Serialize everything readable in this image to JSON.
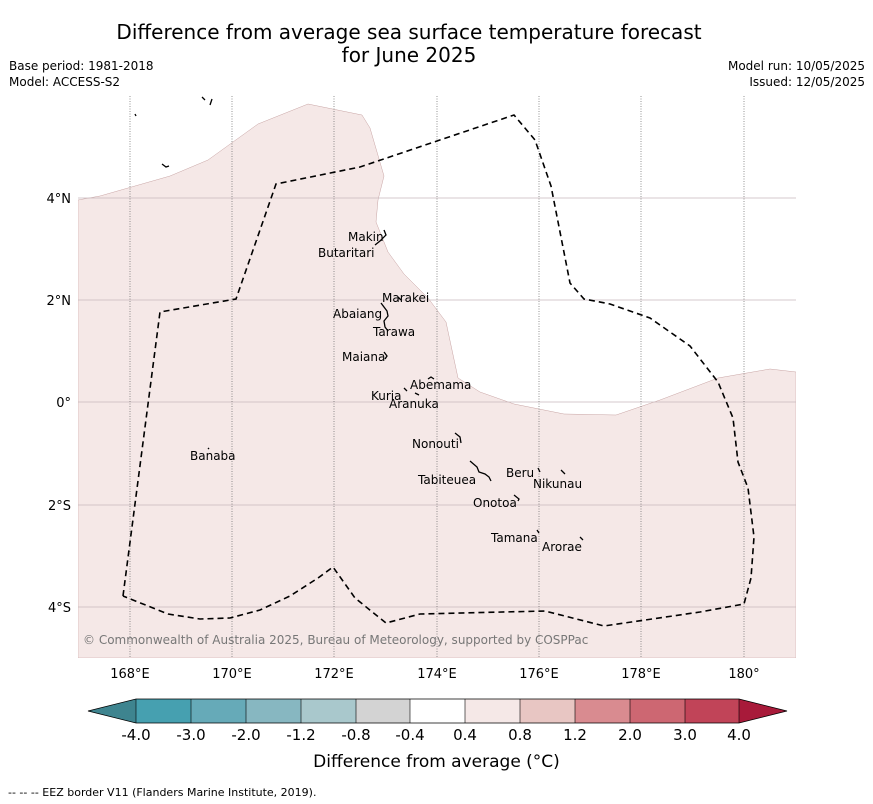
{
  "title": "Difference from average sea surface temperature forecast for June 2025",
  "header": {
    "base_period": "Base period: 1981-2018",
    "model": "Model: ACCESS-S2",
    "model_run": "Model run: 10/05/2025",
    "issued": "Issued: 12/05/2025"
  },
  "map": {
    "lon_ticks": [
      "168°E",
      "170°E",
      "172°E",
      "174°E",
      "176°E",
      "178°E",
      "180°"
    ],
    "lat_ticks": [
      "4°N",
      "2°N",
      "0°",
      "2°S",
      "4°S"
    ],
    "lon_values": [
      168,
      170,
      172,
      174,
      176,
      178,
      180
    ],
    "lat_values": [
      4,
      2,
      0,
      -2,
      -4
    ],
    "islands": [
      "Makin",
      "Butaritari",
      "Marakei",
      "Abaiang",
      "Tarawa",
      "Maiana",
      "Abemama",
      "Kuria",
      "Aranuka",
      "Banaba",
      "Nonouti",
      "Beru",
      "Nikunau",
      "Tabiteuea",
      "Onotoa",
      "Tamana",
      "Arorae"
    ],
    "copyright": "© Commonwealth of Australia 2025, Bureau of Meteorology, supported by COSPPac",
    "anomaly_fill_color": "#f5e8e7",
    "neutral_color": "#ffffff"
  },
  "colorbar": {
    "ticks": [
      "-4.0",
      "-3.0",
      "-2.0",
      "-1.2",
      "-0.8",
      "-0.4",
      "0.4",
      "0.8",
      "1.2",
      "2.0",
      "3.0",
      "4.0"
    ],
    "colors": [
      "#3e848f",
      "#46a0b0",
      "#66aab8",
      "#87b7c1",
      "#a9c8cc",
      "#d3d3d3",
      "#ffffff",
      "#f5e8e7",
      "#e8c6c3",
      "#d98b90",
      "#cd6772",
      "#c14458",
      "#a81a3a"
    ],
    "label": "Difference from average (°C)"
  },
  "footer": "-- -- -- EEZ border V11 (Flanders Marine Institute, 2019)."
}
